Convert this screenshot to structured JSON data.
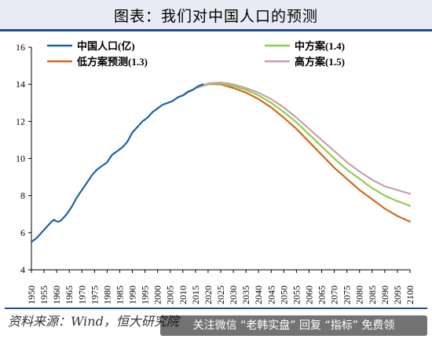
{
  "title": "图表：我们对中国人口的预测",
  "source": "资料来源：Wind，恒大研究院",
  "watermark": "关注微信 “老韩实盘” 回复 “指标” 免费领",
  "colors": {
    "header_bg": "#e8ebf3",
    "header_line": "#1f4e96"
  },
  "chart_data": {
    "type": "line",
    "xlabel": "",
    "ylabel": "",
    "xlim": [
      1950,
      2100
    ],
    "ylim": [
      4,
      16
    ],
    "yticks": [
      4,
      6,
      8,
      10,
      12,
      14,
      16
    ],
    "xticks": [
      1950,
      1955,
      1960,
      1965,
      1970,
      1975,
      1980,
      1985,
      1990,
      1995,
      2000,
      2005,
      2010,
      2015,
      2020,
      2025,
      2030,
      2035,
      2040,
      2045,
      2050,
      2055,
      2060,
      2065,
      2070,
      2075,
      2080,
      2085,
      2090,
      2095,
      2100
    ],
    "grid": false,
    "legend_position": "top",
    "series": [
      {
        "name": "中国人口(亿)",
        "color": "#1a63a8",
        "x": [
          1950,
          1952,
          1954,
          1956,
          1958,
          1959,
          1960,
          1961,
          1962,
          1964,
          1966,
          1968,
          1970,
          1972,
          1974,
          1976,
          1978,
          1980,
          1982,
          1984,
          1986,
          1988,
          1990,
          1992,
          1994,
          1996,
          1998,
          2000,
          2002,
          2004,
          2006,
          2008,
          2010,
          2012,
          2014,
          2016,
          2018
        ],
        "y": [
          5.5,
          5.7,
          6.0,
          6.3,
          6.6,
          6.7,
          6.6,
          6.6,
          6.7,
          7.0,
          7.4,
          7.9,
          8.3,
          8.7,
          9.1,
          9.4,
          9.6,
          9.8,
          10.2,
          10.4,
          10.6,
          10.9,
          11.4,
          11.7,
          12.0,
          12.2,
          12.5,
          12.7,
          12.9,
          13.0,
          13.1,
          13.3,
          13.4,
          13.6,
          13.7,
          13.9,
          14.0
        ]
      },
      {
        "name": "低方案预测(1.3)",
        "color": "#d2691e",
        "x": [
          2010,
          2015,
          2020,
          2025,
          2030,
          2035,
          2040,
          2045,
          2050,
          2055,
          2060,
          2065,
          2070,
          2075,
          2080,
          2085,
          2090,
          2095,
          2100
        ],
        "y": [
          13.4,
          13.8,
          14.0,
          14.0,
          13.8,
          13.55,
          13.2,
          12.75,
          12.2,
          11.6,
          10.9,
          10.2,
          9.5,
          8.9,
          8.3,
          7.8,
          7.3,
          6.9,
          6.6
        ]
      },
      {
        "name": "中方案(1.4)",
        "color": "#8fce4f",
        "x": [
          2010,
          2015,
          2020,
          2025,
          2030,
          2035,
          2040,
          2045,
          2050,
          2055,
          2060,
          2065,
          2070,
          2075,
          2080,
          2085,
          2090,
          2095,
          2100
        ],
        "y": [
          13.4,
          13.8,
          14.0,
          14.05,
          13.9,
          13.7,
          13.4,
          13.0,
          12.5,
          11.95,
          11.3,
          10.65,
          10.0,
          9.4,
          8.9,
          8.4,
          8.0,
          7.7,
          7.45
        ]
      },
      {
        "name": "高方案(1.5)",
        "color": "#c9a0a8",
        "x": [
          2010,
          2015,
          2020,
          2025,
          2030,
          2035,
          2040,
          2045,
          2050,
          2055,
          2060,
          2065,
          2070,
          2075,
          2080,
          2085,
          2090,
          2095,
          2100
        ],
        "y": [
          13.4,
          13.8,
          14.05,
          14.1,
          14.0,
          13.8,
          13.55,
          13.2,
          12.75,
          12.2,
          11.6,
          11.0,
          10.4,
          9.8,
          9.3,
          8.85,
          8.5,
          8.3,
          8.1
        ]
      }
    ]
  }
}
